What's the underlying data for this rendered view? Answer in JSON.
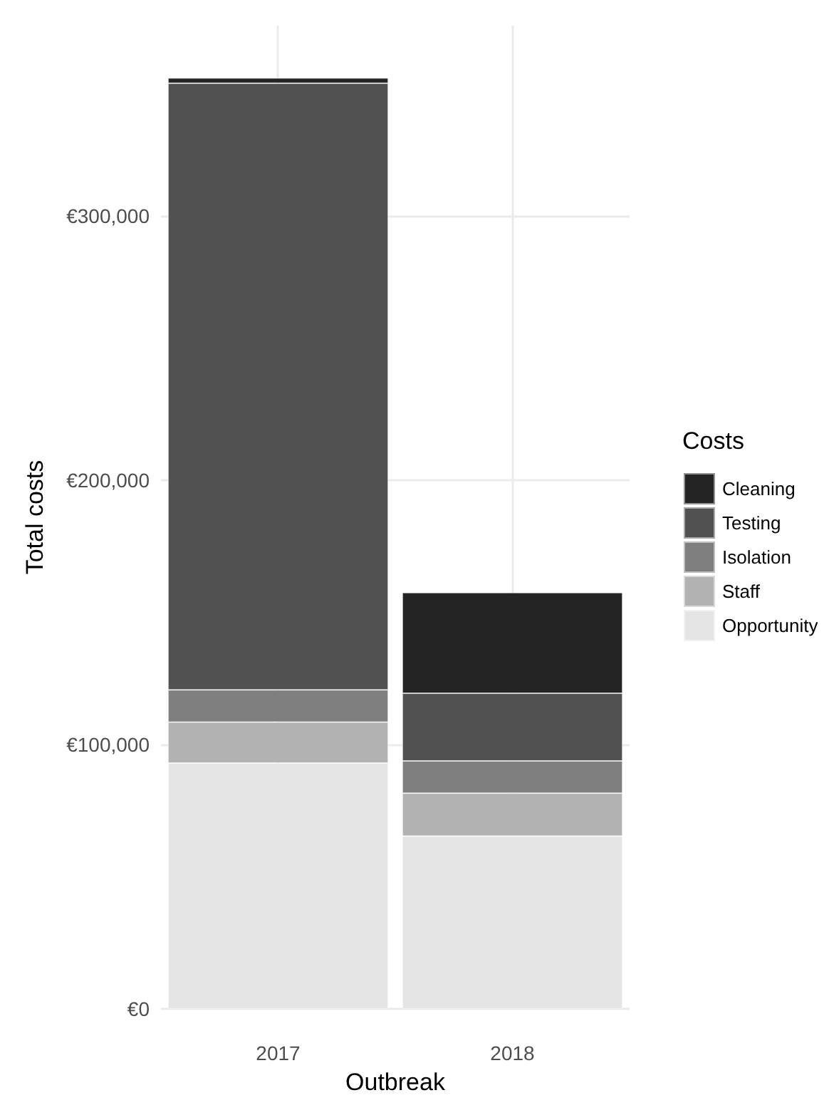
{
  "chart_data": {
    "type": "bar",
    "stacked": true,
    "xlabel": "Outbreak",
    "ylabel": "Total costs",
    "legend_title": "Costs",
    "categories": [
      "2017",
      "2018"
    ],
    "series": [
      {
        "name": "Opportunity",
        "color": "#e5e5e5",
        "values": [
          93000,
          65400
        ]
      },
      {
        "name": "Staff",
        "color": "#b2b2b2",
        "values": [
          15500,
          16200
        ]
      },
      {
        "name": "Isolation",
        "color": "#7f7f7f",
        "values": [
          12200,
          12200
        ]
      },
      {
        "name": "Testing",
        "color": "#515151",
        "values": [
          229500,
          25600
        ]
      },
      {
        "name": "Cleaning",
        "color": "#242424",
        "values": [
          2000,
          38100
        ]
      }
    ],
    "ylim": [
      0,
      372000
    ],
    "yticks": [
      {
        "value": 0,
        "label": "€0"
      },
      {
        "value": 100000,
        "label": "€100,000"
      },
      {
        "value": 200000,
        "label": "€200,000"
      },
      {
        "value": 300000,
        "label": "€300,000"
      }
    ],
    "grid": true,
    "legend": "right"
  }
}
